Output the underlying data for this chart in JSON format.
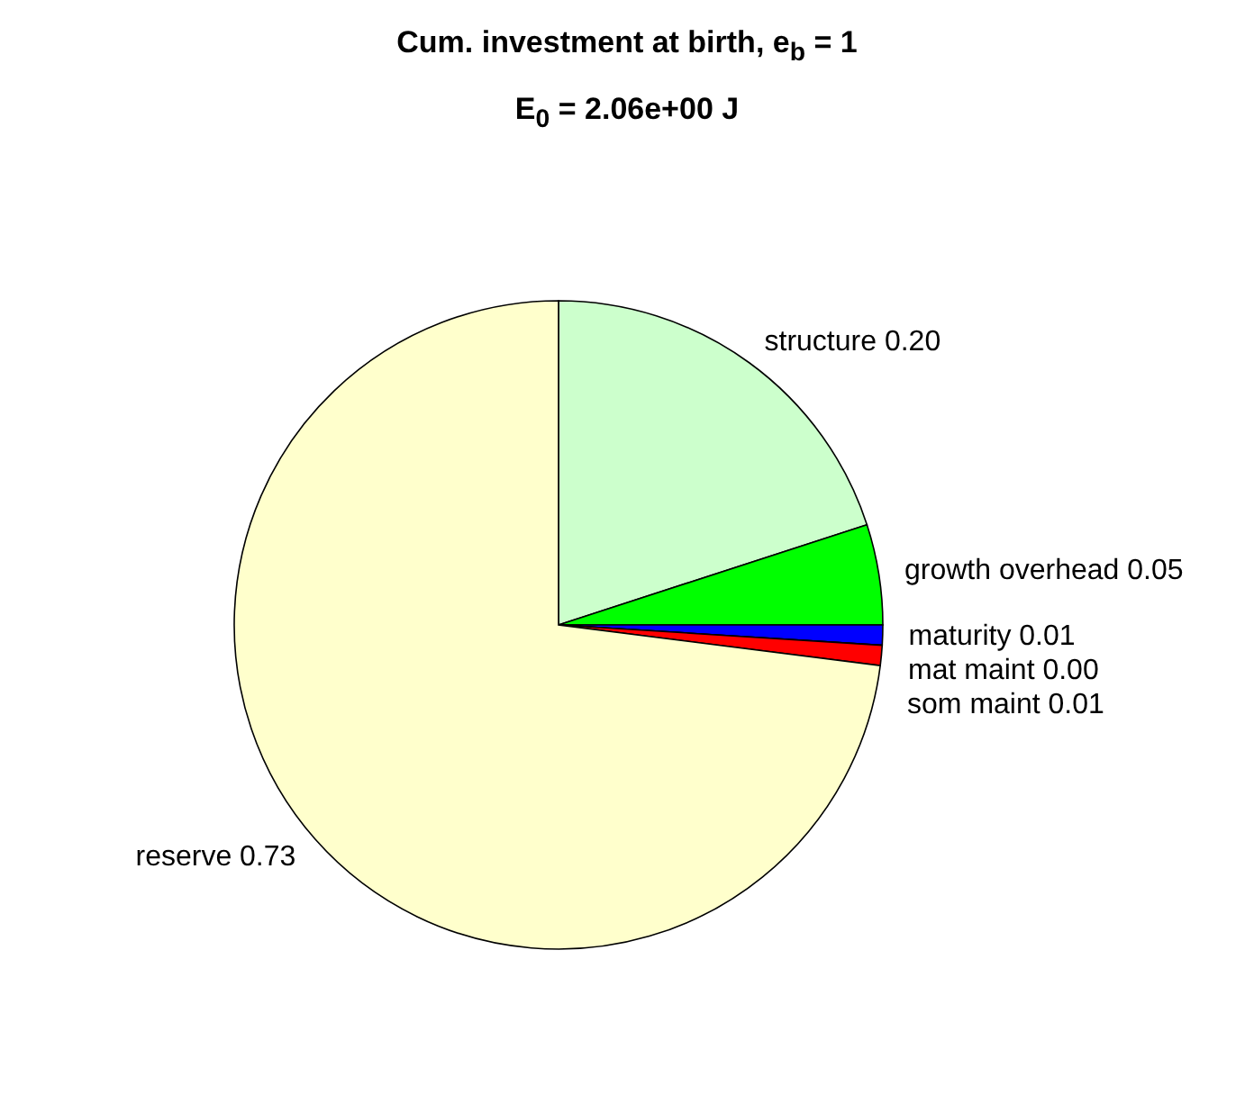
{
  "chart_data": {
    "type": "pie",
    "title": "Cum. investment at birth, e$_{b}$ = 1",
    "subtitle": "E$_{0}$ = 2.06e+00 J",
    "categories": [
      "structure",
      "growth overhead",
      "maturity",
      "mat maint",
      "som maint",
      "reserve"
    ],
    "values": [
      0.2,
      0.05,
      0.01,
      0.0,
      0.01,
      0.73
    ],
    "value_labels": [
      "0.20",
      "0.05",
      "0.01",
      "0.00",
      "0.01",
      "0.73"
    ],
    "colors": [
      "#ccffcc",
      "#00ff00",
      "#0000ff",
      "#ff00ff",
      "#ff0000",
      "#ffffcc"
    ]
  }
}
